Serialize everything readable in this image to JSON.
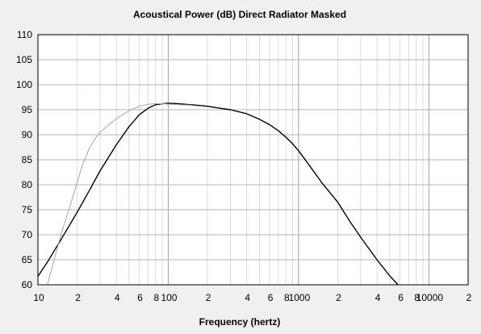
{
  "chart_data": {
    "type": "line",
    "title": "Acoustical Power (dB)   Direct Radiator   Masked",
    "xlabel": "Frequency (hertz)",
    "ylabel": "",
    "x_scale": "log",
    "xlim": [
      10,
      20000
    ],
    "ylim": [
      60,
      110
    ],
    "grid": true,
    "legend": "none",
    "y_ticks": [
      "60",
      "65",
      "70",
      "75",
      "80",
      "85",
      "90",
      "95",
      "100",
      "105",
      "110"
    ],
    "y_tick_values": [
      60,
      65,
      70,
      75,
      80,
      85,
      90,
      95,
      100,
      105,
      110
    ],
    "x_ticks": [
      "10",
      "2",
      "4",
      "6",
      "8",
      "100",
      "2",
      "4",
      "6",
      "8",
      "1000",
      "2",
      "4",
      "6",
      "8",
      "10000",
      "2"
    ],
    "x_tick_values": [
      10,
      20,
      40,
      60,
      80,
      100,
      200,
      400,
      600,
      800,
      1000,
      2000,
      4000,
      6000,
      8000,
      10000,
      20000
    ],
    "series": [
      {
        "color": "#000000",
        "x": [
          10,
          12,
          15,
          20,
          25,
          30,
          40,
          50,
          60,
          70,
          80,
          90,
          100,
          120,
          150,
          200,
          250,
          300,
          400,
          500,
          600,
          700,
          800,
          900,
          1000,
          1200,
          1500,
          2000,
          2500,
          3000,
          4000,
          5000,
          5800
        ],
        "y": [
          61.7,
          64.8,
          69.0,
          74.5,
          79.0,
          82.8,
          88.0,
          91.6,
          94.0,
          95.3,
          96.0,
          96.2,
          96.3,
          96.2,
          96.0,
          95.7,
          95.3,
          95.0,
          94.2,
          93.1,
          92.0,
          90.8,
          89.5,
          88.2,
          86.8,
          84.0,
          80.5,
          76.5,
          72.5,
          69.5,
          65.0,
          61.8,
          60.0
        ]
      },
      {
        "color": "#a8a8a8",
        "x": [
          11.8,
          13,
          15,
          18,
          20,
          22,
          25,
          28,
          30,
          35,
          40,
          50,
          60,
          70,
          80,
          90,
          100,
          120,
          150
        ],
        "y": [
          60.0,
          64.0,
          70.0,
          76.5,
          80.5,
          84.0,
          87.5,
          89.5,
          90.5,
          92.0,
          93.2,
          94.8,
          95.7,
          96.1,
          96.2,
          96.2,
          96.1,
          96.0,
          95.9
        ]
      }
    ]
  }
}
